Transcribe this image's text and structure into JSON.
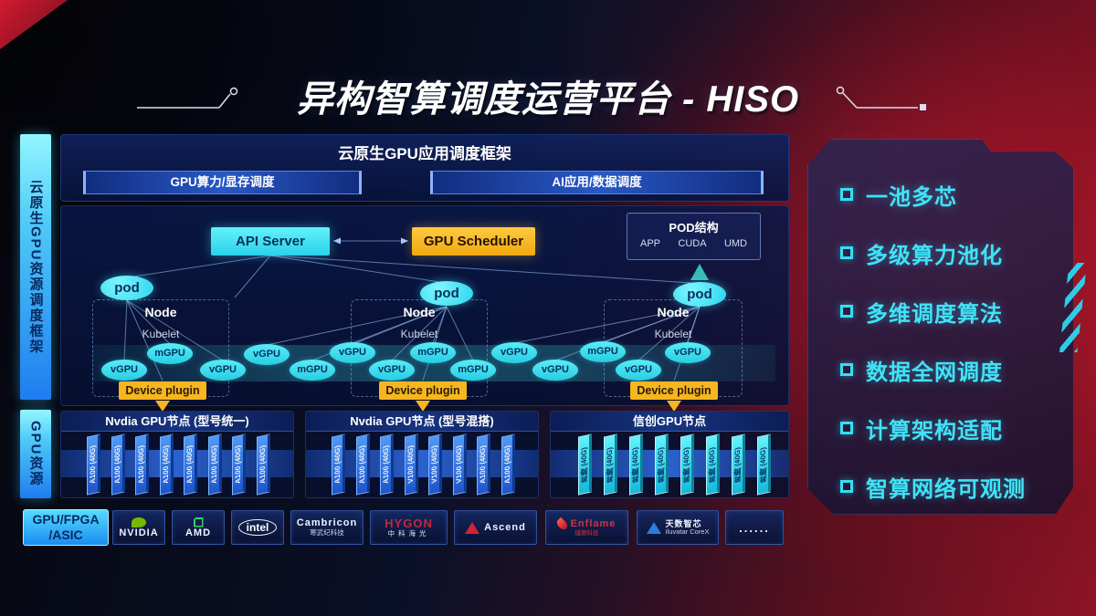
{
  "title": "异构智算调度运营平台 - HISO",
  "left_rails": {
    "rail1": "云原生GPU资源调度框架",
    "rail2": "GPU资源"
  },
  "app_framework": {
    "heading": "云原生GPU应用调度框架",
    "bar_left": "GPU算力/显存调度",
    "bar_right": "AI应用/数据调度"
  },
  "scheduler": {
    "api_server": "API Server",
    "gpu_scheduler": "GPU Scheduler",
    "pod_struct": {
      "title": "POD结构",
      "items": [
        "APP",
        "CUDA",
        "UMD"
      ]
    },
    "pod_label": "pod",
    "node_label": "Node",
    "kubelet_label": "Kubelet",
    "device_plugin": "Device plugin",
    "gpus": [
      "vGPU",
      "mGPU",
      "vGPU",
      "vGPU",
      "mGPU",
      "vGPU",
      "vGPU",
      "mGPU",
      "mGPU",
      "vGPU",
      "vGPU",
      "mGPU",
      "vGPU",
      "vGPU"
    ]
  },
  "gpu_node_groups": [
    {
      "header": "Nvdia GPU节点 (型号统一)",
      "style": "blue",
      "cards": [
        "A100 (40G)",
        "A100 (40G)",
        "A100 (40G)",
        "A100 (40G)",
        "A100 (40G)",
        "A100 (40G)",
        "A100 (40G)",
        "A100 (40G)"
      ]
    },
    {
      "header": "Nvdia GPU节点 (型号混搭)",
      "style": "blue",
      "cards": [
        "A100 (40G)",
        "A100 (40G)",
        "A100 (40G)",
        "V100 (40G)",
        "V100 (40G)",
        "V100 (40G)",
        "A100 (40G)",
        "A100 (40G)"
      ]
    },
    {
      "header": "信创GPU节点",
      "style": "cyan",
      "cards": [
        "昇腾 (40G)",
        "昇腾 (40G)",
        "昇腾 (40G)",
        "昇腾 (40G)",
        "昇腾 (40G)",
        "昇腾 (40G)",
        "昇腾 (40G)",
        "昇腾 (40G)"
      ]
    }
  ],
  "vendor_bar": {
    "label_line1": "GPU/FPGA",
    "label_line2": "/ASIC",
    "vendors": [
      {
        "id": "nvidia",
        "name": "NVIDIA"
      },
      {
        "id": "amd",
        "name": "AMD"
      },
      {
        "id": "intel",
        "name": "intel"
      },
      {
        "id": "cambricon",
        "name": "Cambricon",
        "sub": "寒武纪科技"
      },
      {
        "id": "hygon",
        "name": "HYGON",
        "sub": "中科海光"
      },
      {
        "id": "ascend",
        "name": "Ascend"
      },
      {
        "id": "enflame",
        "name": "Enflame",
        "sub": "燧原科技"
      },
      {
        "id": "iluvatar",
        "name": "天数智芯",
        "sub": "Iluvatar CoreX"
      },
      {
        "id": "more",
        "name": "......"
      }
    ]
  },
  "features": [
    "一池多芯",
    "多级算力池化",
    "多维调度算法",
    "数据全网调度",
    "计算架构适配",
    "智算网络可观测"
  ],
  "colors": {
    "accent_cyan": "#3be2f5",
    "accent_yellow": "#f6b51e",
    "card_blue": "#2e78ea",
    "card_cyan": "#2fd9ee",
    "panel_navy": "#0a1a4d",
    "red": "#b01325"
  }
}
